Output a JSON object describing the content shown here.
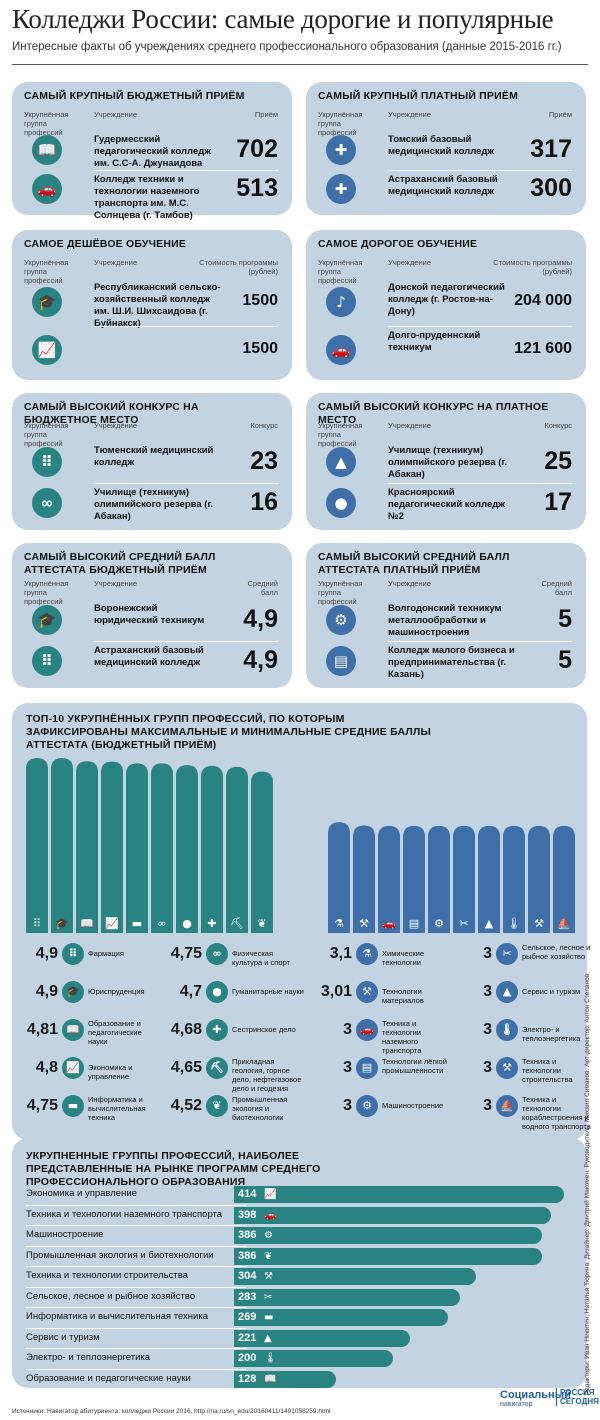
{
  "header": {
    "title": "Колледжи России: самые дорогие и популярные",
    "subtitle": "Интересные факты об учреждениях среднего профессионального образования (данные 2015-2016 гг.)"
  },
  "cards": [
    {
      "id": "budget-intake",
      "title": "САМЫЙ КРУПНЫЙ БЮДЖЕТНЫЙ ПРИЁМ",
      "col_group": "Укрупнённая группа профессий",
      "col_inst": "Учреждение",
      "col_val": "Приём",
      "rows": [
        {
          "name": "Гудермесский педагогический колледж им. С.С-А. Джунаидова",
          "value": "702",
          "icon": "book-icon"
        },
        {
          "name": "Колледж техники и технологии наземного транспорта им. М.С. Солнцева (г. Тамбов)",
          "value": "513",
          "icon": "car-icon"
        }
      ]
    },
    {
      "id": "paid-intake",
      "title": "САМЫЙ КРУПНЫЙ ПЛАТНЫЙ ПРИЁМ",
      "col_group": "Укрупнённая группа профессий",
      "col_inst": "Учреждение",
      "col_val": "Приём",
      "rows": [
        {
          "name": "Томский базовый медицинский колледж",
          "value": "317",
          "icon": "medical-cross-icon"
        },
        {
          "name": "Астраханский базовый медицинский колледж",
          "value": "300",
          "icon": "medical-cross-icon"
        }
      ]
    },
    {
      "id": "cheapest",
      "title": "САМОЕ ДЕШЁВОЕ ОБУЧЕНИЕ",
      "col_group": "Укрупнённая группа профессий",
      "col_inst": "Учреждение",
      "col_val": "Стоимость программы (рублей)",
      "rows": [
        {
          "name": "Республиканский сельско-хозяйственный колледж им. Ш.И. Шихсаидова (г. Буйнакск)",
          "value": "1500",
          "icon": "graduation-cap-icon"
        },
        {
          "name": "",
          "value": "1500",
          "icon": "chart-icon"
        }
      ]
    },
    {
      "id": "most-expensive",
      "title": "САМОЕ ДОРОГОЕ ОБУЧЕНИЕ",
      "col_group": "Укрупнённая группа профессий",
      "col_inst": "Учреждение",
      "col_val": "Стоимость программы (рублей)",
      "rows": [
        {
          "name": "Донской педагогический колледж (г. Ростов-на-Дону)",
          "value": "204 000",
          "icon": "music-note-icon"
        },
        {
          "name": "Долго-пруденнский техникум",
          "value": "121 600",
          "icon": "car-icon"
        }
      ]
    },
    {
      "id": "budget-competition",
      "title": "САМЫЙ ВЫСОКИЙ КОНКУРС НА БЮДЖЕТНОЕ МЕСТО",
      "col_group": "Укрупнённая группа профессий",
      "col_inst": "Учреждение",
      "col_val": "Конкурс",
      "rows": [
        {
          "name": "Тюменский медицинский колледж",
          "value": "23",
          "icon": "pills-icon"
        },
        {
          "name": "Училище (техникум) олимпийского резерва (г. Абакан)",
          "value": "16",
          "icon": "dumbbell-icon"
        }
      ]
    },
    {
      "id": "paid-competition",
      "title": "САМЫЙ ВЫСОКИЙ КОНКУРС НА ПЛАТНОЕ МЕСТО",
      "col_group": "Укрупнённая группа профессий",
      "col_inst": "Учреждение",
      "col_val": "Конкурс",
      "rows": [
        {
          "name": "Училище (техникум) олимпийского резерва (г. Абакан)",
          "value": "25",
          "icon": "tent-icon"
        },
        {
          "name": "Красноярский педагогический колледж №2",
          "value": "17",
          "icon": "person-icon"
        }
      ]
    },
    {
      "id": "budget-score",
      "title": "САМЫЙ ВЫСОКИЙ СРЕДНИЙ БАЛЛ АТТЕСТАТА БЮДЖЕТНЫЙ ПРИЁМ",
      "col_group": "Укрупнённая группа профессий",
      "col_inst": "Учреждение",
      "col_val": "Средний балл",
      "rows": [
        {
          "name": "Воронежский юридический техникум",
          "value": "4,9",
          "icon": "graduation-cap-icon"
        },
        {
          "name": "Астраханский базовый медицинский колледж",
          "value": "4,9",
          "icon": "pills-icon"
        }
      ]
    },
    {
      "id": "paid-score",
      "title": "САМЫЙ ВЫСОКИЙ СРЕДНИЙ БАЛЛ АТТЕСТАТА ПЛАТНЫЙ ПРИЁМ",
      "col_group": "Укрупнённая группа профессий",
      "col_inst": "Учреждение",
      "col_val": "Средний балл",
      "rows": [
        {
          "name": "Волгодонский техникум металлообработки и машиностроения",
          "value": "5",
          "icon": "gear-icon"
        },
        {
          "name": "Колледж малого бизнеса и предпринимательства (г. Казань)",
          "value": "5",
          "icon": "carpet-icon"
        }
      ]
    }
  ],
  "top10": {
    "title": "ТОП-10 УКРУПНЁННЫХ ГРУПП ПРОФЕССИЙ, ПО КОТОРЫМ ЗАФИКСИРОВАНЫ МАКСИМАЛЬНЫЕ И МИНИМАЛЬНЫЕ СРЕДНИЕ БАЛЛЫ АТТЕСТАТА (БЮДЖЕТНЫЙ ПРИЁМ)",
    "max": [
      {
        "value": "4,9",
        "label": "Фармация",
        "icon": "pills-icon"
      },
      {
        "value": "4,9",
        "label": "Юриспруденция",
        "icon": "graduation-cap-icon"
      },
      {
        "value": "4,81",
        "label": "Образование и педагогические науки",
        "icon": "book-icon"
      },
      {
        "value": "4,8",
        "label": "Экономика и управление",
        "icon": "chart-icon"
      },
      {
        "value": "4,75",
        "label": "Информатика и вычислительная техника",
        "icon": "monitor-icon"
      },
      {
        "value": "4,75",
        "label": "Физическая культура и спорт",
        "icon": "dumbbell-icon"
      },
      {
        "value": "4,7",
        "label": "Гуманитарные науки",
        "icon": "person-icon"
      },
      {
        "value": "4,68",
        "label": "Сестринское дело",
        "icon": "medical-cross-icon"
      },
      {
        "value": "4,65",
        "label": "Прикладная геология, горное дело, нефтегазовое дело и геодезия",
        "icon": "mining-cart-icon"
      },
      {
        "value": "4,52",
        "label": "Промышленная экология и биотехнологии",
        "icon": "leaf-icon"
      }
    ],
    "min": [
      {
        "value": "3,1",
        "label": "Химические технологии",
        "icon": "flask-icon"
      },
      {
        "value": "3,01",
        "label": "Технологии материалов",
        "icon": "anvil-icon"
      },
      {
        "value": "3",
        "label": "Техника и технологии наземного транспорта",
        "icon": "car-icon"
      },
      {
        "value": "3",
        "label": "Технологии лёгкой промышленности",
        "icon": "carpet-icon"
      },
      {
        "value": "3",
        "label": "Машиностроение",
        "icon": "gear-icon"
      },
      {
        "value": "3",
        "label": "Сельское, лесное и рыбное хозяйство",
        "icon": "tools-cross-icon"
      },
      {
        "value": "3",
        "label": "Сервис и туризм",
        "icon": "tent-icon"
      },
      {
        "value": "3",
        "label": "Электро- и теплоэнергетика",
        "icon": "thermometer-icon"
      },
      {
        "value": "3",
        "label": "Техника и технологии строительства",
        "icon": "hammer-wrench-icon"
      },
      {
        "value": "3",
        "label": "Техника и технологии кораблестроения и водного транспорта",
        "icon": "ship-icon"
      }
    ],
    "colors": {
      "max": "#2a8383",
      "min": "#3f6fa8"
    }
  },
  "market": {
    "title": "УКРУПНЕННЫЕ ГРУППЫ ПРОФЕССИЙ, НАИБОЛЕЕ ПРЕДСТАВЛЕННЫЕ НА РЫНКЕ ПРОГРАММ СРЕДНЕГО ПРОФЕССИОНАЛЬНОГО ОБРАЗОВАНИЯ"
  },
  "chart_data": [
    {
      "type": "bar",
      "categories": [
        "Фармация",
        "Юриспруденция",
        "Образование и педагогические науки",
        "Экономика и управление",
        "Информатика и вычислительная техника",
        "Физическая культура и спорт",
        "Гуманитарные науки",
        "Сестринское дело",
        "Прикладная геология, горное дело, нефтегазовое дело и геодезия",
        "Промышленная экология и биотехнологии",
        "Химические технологии",
        "Технологии материалов",
        "Техника и технологии наземного транспорта",
        "Технологии лёгкой промышленности",
        "Машиностроение",
        "Сельское, лесное и рыбное хозяйство",
        "Сервис и туризм",
        "Электро- и теплоэнергетика",
        "Техника и технологии строительства",
        "Техника и технологии кораблестроения и водного транспорта"
      ],
      "values": [
        4.9,
        4.9,
        4.81,
        4.8,
        4.75,
        4.75,
        4.7,
        4.68,
        4.65,
        4.52,
        3.1,
        3.01,
        3,
        3,
        3,
        3,
        3,
        3,
        3,
        3
      ],
      "ylim": [
        0,
        4.9
      ]
    },
    {
      "type": "bar",
      "orientation": "horizontal",
      "categories": [
        "Экономика и управление",
        "Техника и технологии наземного транспорта",
        "Машиностроение",
        "Промышленная экология и биотехнологии",
        "Техника и технологии строительства",
        "Сельское, лесное и рыбное хозяйство",
        "Информатика и вычислительная техника",
        "Сервис и туризм",
        "Электро- и теплоэнергетика",
        "Образование и педагогические науки"
      ],
      "values": [
        414,
        398,
        386,
        386,
        304,
        283,
        269,
        221,
        200,
        128
      ],
      "icons": [
        "chart-icon",
        "car-icon",
        "gear-icon",
        "leaf-icon",
        "hammer-wrench-icon",
        "tools-cross-icon",
        "monitor-icon",
        "tent-icon",
        "thermometer-icon",
        "book-icon"
      ],
      "xlim": [
        0,
        414
      ]
    }
  ],
  "icons": {
    "book-icon": "📖",
    "car-icon": "🚗",
    "medical-cross-icon": "✚",
    "graduation-cap-icon": "🎓",
    "chart-icon": "📈",
    "music-note-icon": "♪",
    "pills-icon": "⠿",
    "dumbbell-icon": "∞",
    "tent-icon": "▲",
    "person-icon": "●",
    "gear-icon": "⚙",
    "carpet-icon": "▤",
    "monitor-icon": "▬",
    "mining-cart-icon": "⛏",
    "leaf-icon": "❦",
    "flask-icon": "⚗",
    "anvil-icon": "⚒",
    "tools-cross-icon": "✂",
    "thermometer-icon": "🌡",
    "hammer-wrench-icon": "⚒",
    "ship-icon": "⛵"
  },
  "footer": {
    "source": "Источники: Навигатор абитуриента: колледжи России 2016, http://ria.ru/sn_edu/20160411/1401058259.html",
    "brand_main": "Социальный",
    "brand_sub": "навигатор",
    "brand_ria": "РОССИЯ СЕГОДНЯ",
    "credits": "Редакторы: Иван Никитин, Наталья Тюрина. Дизайнер: Дмитрий Макомен. Руководитель: Михаил Симаков. Арт-директор: Антон Степанов"
  }
}
